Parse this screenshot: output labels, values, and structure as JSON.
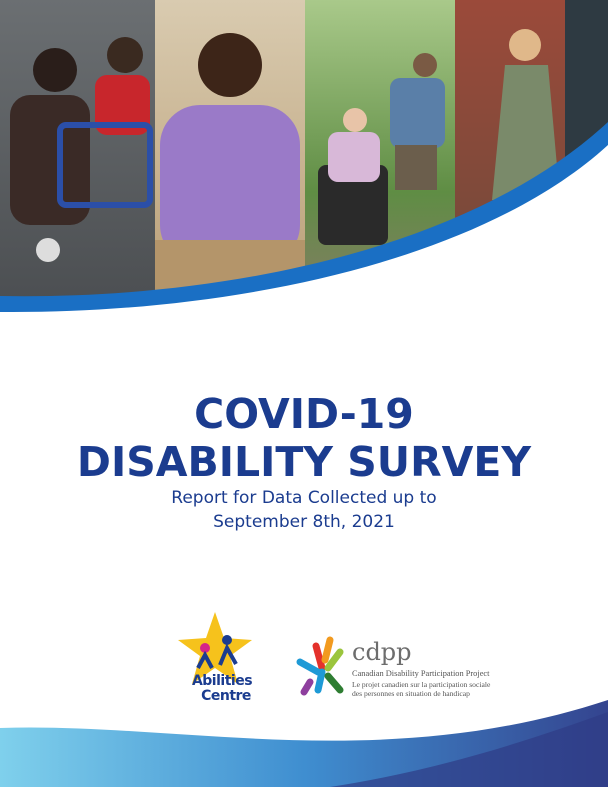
{
  "cover": {
    "title": [
      "COVID-19",
      "DISABILITY SURVEY"
    ],
    "subtitle": [
      "Report for Data Collected up to",
      "September 8th, 2021"
    ],
    "logos": {
      "abilities": [
        "Abilities",
        "Centre"
      ],
      "cdpp": {
        "name": "cdpp",
        "full_name": "Canadian Disability Participation Project",
        "french": [
          "Le projet canadien sur la participation sociale",
          "des personnes en situation de handicap"
        ]
      }
    }
  }
}
